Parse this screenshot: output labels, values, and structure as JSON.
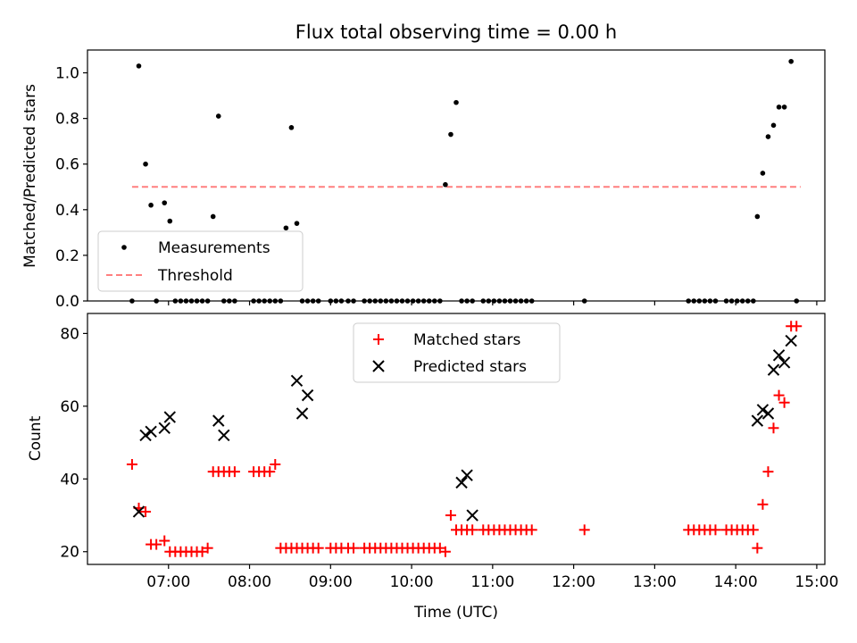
{
  "figure_title": "Flux total observing time = 0.00 h",
  "chart_data": [
    {
      "type": "scatter",
      "panel": "top",
      "xlabel": "",
      "ylabel": "Matched/Predicted stars",
      "xlim": [
        "06:00",
        "15:06"
      ],
      "ylim": [
        0,
        1.1
      ],
      "yticks": [
        0.0,
        0.2,
        0.4,
        0.6,
        0.8,
        1.0
      ],
      "ytick_labels": [
        "0.0",
        "0.2",
        "0.4",
        "0.6",
        "0.8",
        "1.0"
      ],
      "grid": false,
      "legend_position": "bottom-left",
      "series": [
        {
          "name": "Measurements",
          "kind": "points",
          "color": "#000000",
          "x": [
            "06:33",
            "06:38",
            "06:43",
            "06:47",
            "06:51",
            "06:57",
            "07:01",
            "07:05",
            "07:09",
            "07:13",
            "07:17",
            "07:21",
            "07:25",
            "07:29",
            "07:33",
            "07:37",
            "07:41",
            "07:45",
            "07:49",
            "08:03",
            "08:07",
            "08:11",
            "08:15",
            "08:19",
            "08:23",
            "08:27",
            "08:31",
            "08:35",
            "08:39",
            "08:43",
            "08:47",
            "08:51",
            "09:00",
            "09:04",
            "09:08",
            "09:13",
            "09:17",
            "09:25",
            "09:29",
            "09:33",
            "09:37",
            "09:41",
            "09:45",
            "09:49",
            "09:53",
            "09:57",
            "10:01",
            "10:05",
            "10:09",
            "10:13",
            "10:17",
            "10:21",
            "10:25",
            "10:29",
            "10:33",
            "10:37",
            "10:41",
            "10:45",
            "10:53",
            "10:57",
            "11:01",
            "11:05",
            "11:09",
            "11:13",
            "11:17",
            "11:21",
            "11:25",
            "11:29",
            "12:08",
            "13:25",
            "13:29",
            "13:33",
            "13:37",
            "13:41",
            "13:45",
            "13:53",
            "13:57",
            "14:01",
            "14:05",
            "14:09",
            "14:13",
            "14:16",
            "14:20",
            "14:24",
            "14:28",
            "14:32",
            "14:36",
            "14:41",
            "14:45"
          ],
          "y": [
            0.0,
            1.03,
            0.6,
            0.42,
            0.0,
            0.43,
            0.35,
            0.0,
            0.0,
            0.0,
            0.0,
            0.0,
            0.0,
            0.0,
            0.37,
            0.81,
            0.0,
            0.0,
            0.0,
            0.0,
            0.0,
            0.0,
            0.0,
            0.0,
            0.0,
            0.32,
            0.76,
            0.34,
            0.0,
            0.0,
            0.0,
            0.0,
            0.0,
            0.0,
            0.0,
            0.0,
            0.0,
            0.0,
            0.0,
            0.0,
            0.0,
            0.0,
            0.0,
            0.0,
            0.0,
            0.0,
            0.0,
            0.0,
            0.0,
            0.0,
            0.0,
            0.0,
            0.51,
            0.73,
            0.87,
            0.0,
            0.0,
            0.0,
            0.0,
            0.0,
            0.0,
            0.0,
            0.0,
            0.0,
            0.0,
            0.0,
            0.0,
            0.0,
            0.0,
            0.0,
            0.0,
            0.0,
            0.0,
            0.0,
            0.0,
            0.0,
            0.0,
            0.0,
            0.0,
            0.0,
            0.0,
            0.37,
            0.56,
            0.72,
            0.77,
            0.85,
            0.85,
            1.05,
            0.0
          ]
        },
        {
          "name": "Threshold",
          "kind": "dashed-line",
          "color": "#ff7f7f",
          "x": [
            "06:33",
            "14:48"
          ],
          "y": [
            0.5,
            0.5
          ]
        }
      ]
    },
    {
      "type": "scatter",
      "panel": "bottom",
      "xlabel": "Time (UTC)",
      "ylabel": "Count",
      "xlim": [
        "06:00",
        "15:06"
      ],
      "ylim": [
        16.5,
        85.5
      ],
      "yticks": [
        20,
        40,
        60,
        80
      ],
      "ytick_labels": [
        "20",
        "40",
        "60",
        "80"
      ],
      "xticks": [
        "07:00",
        "08:00",
        "09:00",
        "10:00",
        "11:00",
        "12:00",
        "13:00",
        "14:00",
        "15:00"
      ],
      "xtick_labels": [
        "07:00",
        "08:00",
        "09:00",
        "10:00",
        "11:00",
        "12:00",
        "13:00",
        "14:00",
        "15:00"
      ],
      "grid": false,
      "legend_position": "top-center",
      "series": [
        {
          "name": "Matched stars",
          "kind": "plus",
          "color": "#ff0000",
          "x": [
            "06:33",
            "06:38",
            "06:43",
            "06:47",
            "06:51",
            "06:57",
            "07:01",
            "07:05",
            "07:09",
            "07:13",
            "07:17",
            "07:21",
            "07:25",
            "07:29",
            "07:33",
            "07:37",
            "07:41",
            "07:45",
            "07:49",
            "08:03",
            "08:07",
            "08:11",
            "08:15",
            "08:19",
            "08:23",
            "08:27",
            "08:31",
            "08:35",
            "08:39",
            "08:43",
            "08:47",
            "08:51",
            "09:00",
            "09:04",
            "09:08",
            "09:13",
            "09:17",
            "09:25",
            "09:29",
            "09:33",
            "09:37",
            "09:41",
            "09:45",
            "09:49",
            "09:53",
            "09:57",
            "10:01",
            "10:05",
            "10:09",
            "10:13",
            "10:17",
            "10:21",
            "10:25",
            "10:29",
            "10:33",
            "10:37",
            "10:41",
            "10:45",
            "10:53",
            "10:57",
            "11:01",
            "11:05",
            "11:09",
            "11:13",
            "11:17",
            "11:21",
            "11:25",
            "11:29",
            "12:08",
            "13:25",
            "13:29",
            "13:33",
            "13:37",
            "13:41",
            "13:45",
            "13:53",
            "13:57",
            "14:01",
            "14:05",
            "14:09",
            "14:13",
            "14:16",
            "14:20",
            "14:24",
            "14:28",
            "14:32",
            "14:36",
            "14:41",
            "14:45"
          ],
          "y": [
            44,
            32,
            31,
            22,
            22,
            23,
            20,
            20,
            20,
            20,
            20,
            20,
            20,
            21,
            42,
            42,
            42,
            42,
            42,
            42,
            42,
            42,
            42,
            44,
            21,
            21,
            21,
            21,
            21,
            21,
            21,
            21,
            21,
            21,
            21,
            21,
            21,
            21,
            21,
            21,
            21,
            21,
            21,
            21,
            21,
            21,
            21,
            21,
            21,
            21,
            21,
            21,
            20,
            30,
            26,
            26,
            26,
            26,
            26,
            26,
            26,
            26,
            26,
            26,
            26,
            26,
            26,
            26,
            26,
            26,
            26,
            26,
            26,
            26,
            26,
            26,
            26,
            26,
            26,
            26,
            26,
            21,
            33,
            42,
            54,
            63,
            61,
            82,
            82
          ]
        },
        {
          "name": "Predicted stars",
          "kind": "x",
          "color": "#000000",
          "x": [
            "06:38",
            "06:43",
            "06:47",
            "06:57",
            "07:01",
            "07:37",
            "07:41",
            "08:35",
            "08:39",
            "08:43",
            "10:37",
            "10:41",
            "10:45",
            "14:16",
            "14:20",
            "14:24",
            "14:28",
            "14:32",
            "14:36",
            "14:41"
          ],
          "y": [
            31,
            52,
            53,
            54,
            57,
            56,
            52,
            67,
            58,
            63,
            39,
            41,
            30,
            56,
            59,
            58,
            70,
            74,
            72,
            78
          ]
        }
      ]
    }
  ]
}
